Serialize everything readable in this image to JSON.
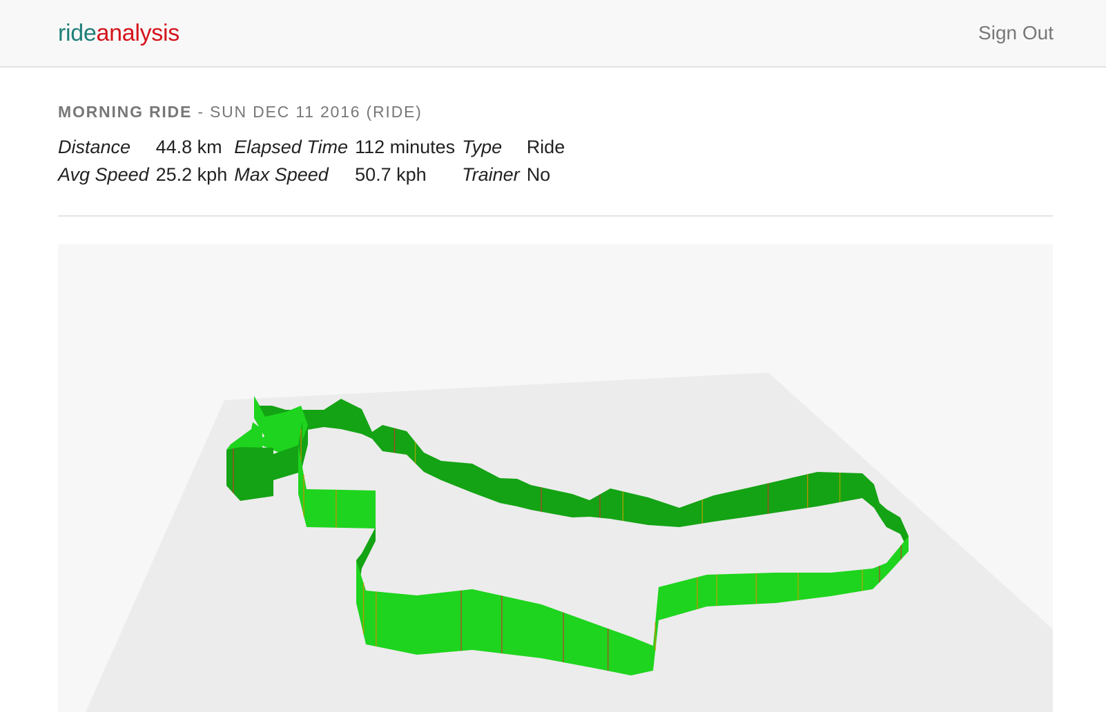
{
  "navbar": {
    "brand_part1": "ride",
    "brand_part2": "analysis",
    "brand_color_1": "#1d7f78",
    "brand_color_2": "#d4141b",
    "sign_out_label": "Sign Out"
  },
  "activity": {
    "name": "MORNING RIDE",
    "separator": "-",
    "date_type": "SUN DEC 11 2016 (RIDE)",
    "stats": [
      [
        {
          "label": "Distance",
          "value": "44.8 km"
        },
        {
          "label": "Elapsed Time",
          "value": "112 minutes"
        },
        {
          "label": "Type",
          "value": "Ride"
        }
      ],
      [
        {
          "label": "Avg Speed",
          "value": "25.2 kph"
        },
        {
          "label": "Max Speed",
          "value": "50.7 kph"
        },
        {
          "label": "Trainer",
          "value": "No"
        }
      ]
    ]
  },
  "viewer": {
    "ribbon_color": "#1ed41e",
    "ribbon_shadow_color": "#14a314",
    "stripe_colors": [
      "#d98a00",
      "#c0392b",
      "#b8a500"
    ],
    "ground_color": "#ececec"
  }
}
